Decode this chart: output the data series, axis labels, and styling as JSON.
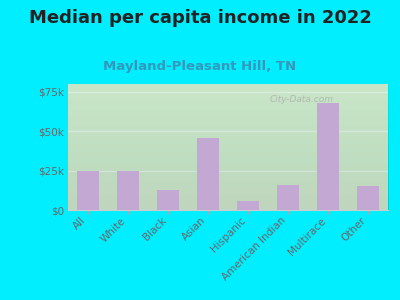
{
  "title": "Median per capita income in 2022",
  "subtitle": "Mayland-Pleasant Hill, TN",
  "categories": [
    "All",
    "White",
    "Black",
    "Asian",
    "Hispanic",
    "American Indian",
    "Multirace",
    "Other"
  ],
  "values": [
    25000,
    25000,
    13000,
    46000,
    6000,
    16000,
    68000,
    15000
  ],
  "bar_color": "#c4a8d4",
  "background_outer": "#00eeff",
  "background_plot": "#e8f5e0",
  "ylim": [
    0,
    80000
  ],
  "yticks": [
    0,
    25000,
    50000,
    75000
  ],
  "title_fontsize": 13,
  "subtitle_fontsize": 9.5,
  "tick_label_fontsize": 7.5,
  "ytick_label_fontsize": 7.5,
  "watermark": "City-Data.com",
  "title_color": "#222222",
  "subtitle_color": "#3399bb",
  "tick_color": "#666666"
}
